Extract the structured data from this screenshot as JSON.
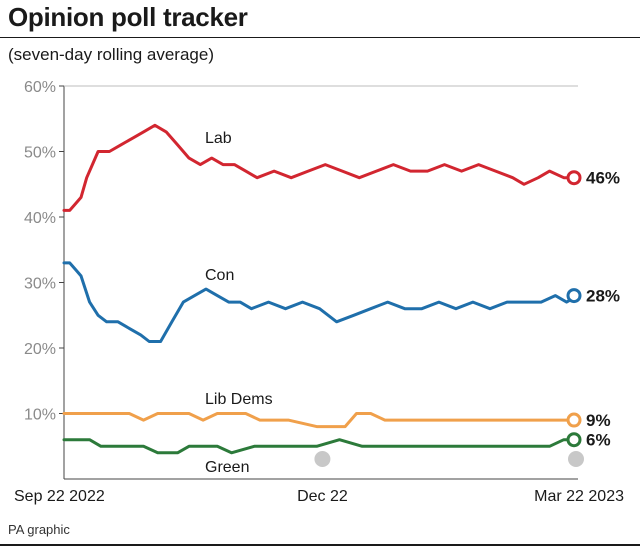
{
  "header": {
    "title": "Opinion poll tracker",
    "subtitle": "(seven-day rolling average)"
  },
  "footer": {
    "credit": "PA graphic"
  },
  "chart_data": {
    "type": "line",
    "title": "Opinion poll tracker",
    "subtitle": "(seven-day rolling average)",
    "ylim": [
      0,
      60
    ],
    "yticks": [
      10,
      20,
      30,
      40,
      50,
      60
    ],
    "ytick_labels": [
      "10%",
      "20%",
      "30%",
      "40%",
      "50%",
      "60%"
    ],
    "xlim": [
      "2022-09-22",
      "2023-03-22"
    ],
    "xtick_labels": [
      "Sep 22 2022",
      "Dec 22",
      "Mar 22 2023"
    ],
    "xtick_dates": [
      "2022-09-22",
      "2022-12-22",
      "2023-03-22"
    ],
    "grid": false,
    "series": [
      {
        "name": "Lab",
        "color": "#d22630",
        "end_label": "46%",
        "points": [
          [
            "2022-09-22",
            41
          ],
          [
            "2022-09-24",
            41
          ],
          [
            "2022-09-26",
            42
          ],
          [
            "2022-09-28",
            43
          ],
          [
            "2022-09-30",
            46
          ],
          [
            "2022-10-02",
            48
          ],
          [
            "2022-10-04",
            50
          ],
          [
            "2022-10-08",
            50
          ],
          [
            "2022-10-12",
            51
          ],
          [
            "2022-10-16",
            52
          ],
          [
            "2022-10-20",
            53
          ],
          [
            "2022-10-24",
            54
          ],
          [
            "2022-10-28",
            53
          ],
          [
            "2022-11-01",
            51
          ],
          [
            "2022-11-05",
            49
          ],
          [
            "2022-11-09",
            48
          ],
          [
            "2022-11-13",
            49
          ],
          [
            "2022-11-17",
            48
          ],
          [
            "2022-11-21",
            48
          ],
          [
            "2022-11-25",
            47
          ],
          [
            "2022-11-29",
            46
          ],
          [
            "2022-12-05",
            47
          ],
          [
            "2022-12-11",
            46
          ],
          [
            "2022-12-17",
            47
          ],
          [
            "2022-12-23",
            48
          ],
          [
            "2022-12-29",
            47
          ],
          [
            "2023-01-04",
            46
          ],
          [
            "2023-01-10",
            47
          ],
          [
            "2023-01-16",
            48
          ],
          [
            "2023-01-22",
            47
          ],
          [
            "2023-01-28",
            47
          ],
          [
            "2023-02-03",
            48
          ],
          [
            "2023-02-09",
            47
          ],
          [
            "2023-02-15",
            48
          ],
          [
            "2023-02-21",
            47
          ],
          [
            "2023-02-27",
            46
          ],
          [
            "2023-03-03",
            45
          ],
          [
            "2023-03-08",
            46
          ],
          [
            "2023-03-12",
            47
          ],
          [
            "2023-03-17",
            46
          ],
          [
            "2023-03-22",
            46
          ]
        ]
      },
      {
        "name": "Con",
        "color": "#1f6fab",
        "end_label": "28%",
        "points": [
          [
            "2022-09-22",
            33
          ],
          [
            "2022-09-24",
            33
          ],
          [
            "2022-09-26",
            32
          ],
          [
            "2022-09-28",
            31
          ],
          [
            "2022-10-01",
            27
          ],
          [
            "2022-10-04",
            25
          ],
          [
            "2022-10-07",
            24
          ],
          [
            "2022-10-11",
            24
          ],
          [
            "2022-10-15",
            23
          ],
          [
            "2022-10-19",
            22
          ],
          [
            "2022-10-22",
            21
          ],
          [
            "2022-10-26",
            21
          ],
          [
            "2022-10-30",
            24
          ],
          [
            "2022-11-03",
            27
          ],
          [
            "2022-11-07",
            28
          ],
          [
            "2022-11-11",
            29
          ],
          [
            "2022-11-15",
            28
          ],
          [
            "2022-11-19",
            27
          ],
          [
            "2022-11-23",
            27
          ],
          [
            "2022-11-27",
            26
          ],
          [
            "2022-12-03",
            27
          ],
          [
            "2022-12-09",
            26
          ],
          [
            "2022-12-15",
            27
          ],
          [
            "2022-12-21",
            26
          ],
          [
            "2022-12-27",
            24
          ],
          [
            "2023-01-02",
            25
          ],
          [
            "2023-01-08",
            26
          ],
          [
            "2023-01-14",
            27
          ],
          [
            "2023-01-20",
            26
          ],
          [
            "2023-01-26",
            26
          ],
          [
            "2023-02-01",
            27
          ],
          [
            "2023-02-07",
            26
          ],
          [
            "2023-02-13",
            27
          ],
          [
            "2023-02-19",
            26
          ],
          [
            "2023-02-25",
            27
          ],
          [
            "2023-03-03",
            27
          ],
          [
            "2023-03-09",
            27
          ],
          [
            "2023-03-14",
            28
          ],
          [
            "2023-03-18",
            27
          ],
          [
            "2023-03-22",
            28
          ]
        ]
      },
      {
        "name": "Lib Dems",
        "color": "#f0a04b",
        "end_label": "9%",
        "points": [
          [
            "2022-09-22",
            10
          ],
          [
            "2022-10-15",
            10
          ],
          [
            "2022-10-20",
            9
          ],
          [
            "2022-10-25",
            10
          ],
          [
            "2022-11-05",
            10
          ],
          [
            "2022-11-10",
            9
          ],
          [
            "2022-11-15",
            10
          ],
          [
            "2022-11-25",
            10
          ],
          [
            "2022-11-30",
            9
          ],
          [
            "2022-12-10",
            9
          ],
          [
            "2022-12-20",
            8
          ],
          [
            "2022-12-30",
            8
          ],
          [
            "2023-01-03",
            10
          ],
          [
            "2023-01-08",
            10
          ],
          [
            "2023-01-13",
            9
          ],
          [
            "2023-02-10",
            9
          ],
          [
            "2023-03-05",
            9
          ],
          [
            "2023-03-15",
            9
          ],
          [
            "2023-03-22",
            9
          ]
        ]
      },
      {
        "name": "Green",
        "color": "#2c7a3a",
        "end_label": "6%",
        "points": [
          [
            "2022-09-22",
            6
          ],
          [
            "2022-10-01",
            6
          ],
          [
            "2022-10-05",
            5
          ],
          [
            "2022-10-20",
            5
          ],
          [
            "2022-10-25",
            4
          ],
          [
            "2022-11-01",
            4
          ],
          [
            "2022-11-05",
            5
          ],
          [
            "2022-11-15",
            5
          ],
          [
            "2022-11-20",
            4
          ],
          [
            "2022-11-28",
            5
          ],
          [
            "2022-12-10",
            5
          ],
          [
            "2022-12-20",
            5
          ],
          [
            "2022-12-28",
            6
          ],
          [
            "2023-01-05",
            5
          ],
          [
            "2023-01-20",
            5
          ],
          [
            "2023-02-05",
            5
          ],
          [
            "2023-02-20",
            5
          ],
          [
            "2023-03-05",
            5
          ],
          [
            "2023-03-12",
            5
          ],
          [
            "2023-03-17",
            6
          ],
          [
            "2023-03-22",
            6
          ]
        ]
      }
    ]
  }
}
